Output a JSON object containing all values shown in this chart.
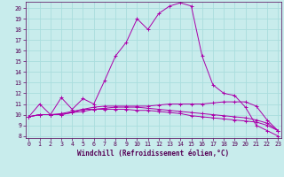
{
  "xlabel": "Windchill (Refroidissement éolien,°C)",
  "background_color": "#c8ecec",
  "grid_color": "#aadddd",
  "line_color": "#aa00aa",
  "x_ticks": [
    0,
    1,
    2,
    3,
    4,
    5,
    6,
    7,
    8,
    9,
    10,
    11,
    12,
    13,
    14,
    15,
    16,
    17,
    18,
    19,
    20,
    21,
    22,
    23
  ],
  "y_ticks": [
    8,
    9,
    10,
    11,
    12,
    13,
    14,
    15,
    16,
    17,
    18,
    19,
    20
  ],
  "ylim": [
    7.8,
    20.6
  ],
  "xlim": [
    -0.3,
    23.3
  ],
  "series": [
    {
      "x": [
        0,
        1,
        2,
        3,
        4,
        5,
        6,
        7,
        8,
        9,
        10,
        11,
        12,
        13,
        14,
        15,
        16,
        17,
        18,
        19,
        20,
        21,
        22,
        23
      ],
      "y": [
        9.8,
        11.0,
        10.0,
        11.6,
        10.5,
        11.5,
        11.0,
        13.2,
        15.5,
        16.8,
        19.0,
        18.0,
        19.5,
        20.2,
        20.5,
        20.2,
        15.5,
        12.8,
        12.0,
        11.8,
        10.7,
        9.0,
        8.5,
        8.0
      ]
    },
    {
      "x": [
        0,
        1,
        2,
        3,
        4,
        5,
        6,
        7,
        8,
        9,
        10,
        11,
        12,
        13,
        14,
        15,
        16,
        17,
        18,
        19,
        20,
        21,
        22,
        23
      ],
      "y": [
        9.8,
        10.0,
        10.0,
        10.0,
        10.2,
        10.3,
        10.5,
        10.5,
        10.5,
        10.5,
        10.4,
        10.4,
        10.3,
        10.2,
        10.1,
        9.9,
        9.8,
        9.7,
        9.6,
        9.5,
        9.4,
        9.3,
        9.0,
        8.5
      ]
    },
    {
      "x": [
        0,
        1,
        2,
        3,
        4,
        5,
        6,
        7,
        8,
        9,
        10,
        11,
        12,
        13,
        14,
        15,
        16,
        17,
        18,
        19,
        20,
        21,
        22,
        23
      ],
      "y": [
        9.8,
        10.0,
        10.0,
        10.1,
        10.3,
        10.5,
        10.7,
        10.8,
        10.8,
        10.8,
        10.8,
        10.8,
        10.9,
        11.0,
        11.0,
        11.0,
        11.0,
        11.1,
        11.2,
        11.2,
        11.2,
        10.8,
        9.5,
        8.5
      ]
    },
    {
      "x": [
        0,
        1,
        2,
        3,
        4,
        5,
        6,
        7,
        8,
        9,
        10,
        11,
        12,
        13,
        14,
        15,
        16,
        17,
        18,
        19,
        20,
        21,
        22,
        23
      ],
      "y": [
        9.8,
        10.0,
        10.0,
        10.0,
        10.2,
        10.5,
        10.5,
        10.6,
        10.7,
        10.7,
        10.7,
        10.6,
        10.5,
        10.4,
        10.3,
        10.2,
        10.1,
        10.0,
        9.9,
        9.8,
        9.7,
        9.5,
        9.2,
        8.5
      ]
    }
  ],
  "marker": "+",
  "linewidth": 0.7,
  "markersize": 2.5,
  "tick_fontsize": 4.8,
  "xlabel_fontsize": 5.5
}
